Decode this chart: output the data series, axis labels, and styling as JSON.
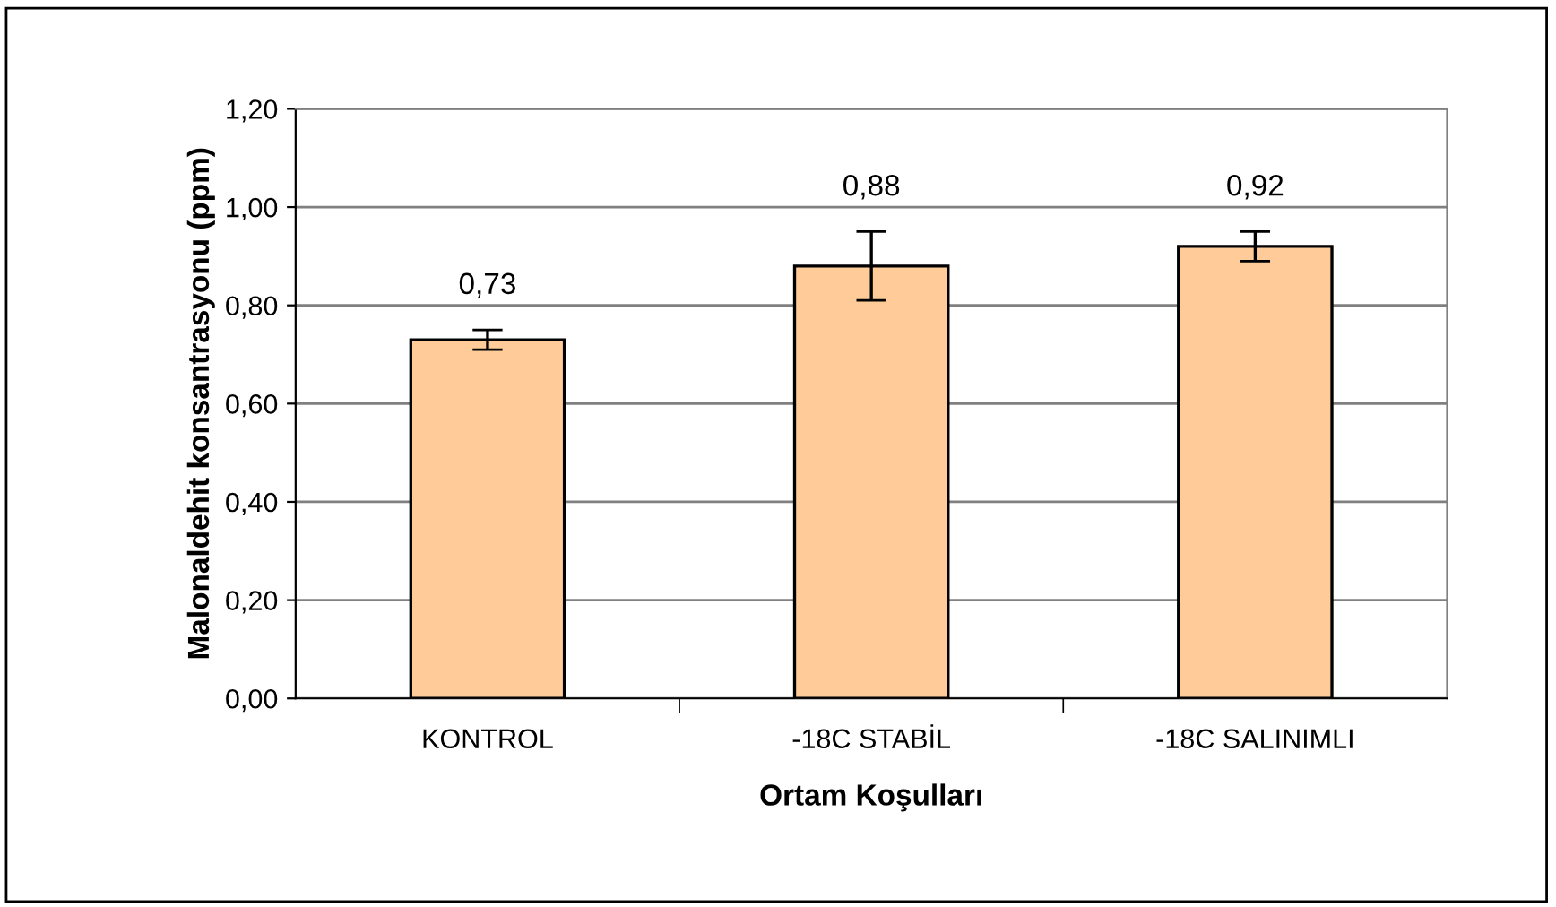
{
  "chart_data": {
    "type": "bar",
    "xlabel": "Ortam Koşulları",
    "ylabel": "Malonaldehit konsantrasyonu (ppm)",
    "categories": [
      "KONTROL",
      "-18C STABİL",
      "-18C SALINIMLI"
    ],
    "values": [
      0.73,
      0.88,
      0.92
    ],
    "errors": [
      0.02,
      0.07,
      0.03
    ],
    "color": "#ffcc99",
    "value_labels": [
      "0,73",
      "0,88",
      "0,92"
    ],
    "ylim": [
      0,
      1.2
    ],
    "yticks": [
      {
        "value": 0,
        "label": "0,00"
      },
      {
        "value": 0.2,
        "label": "0,20"
      },
      {
        "value": 0.4,
        "label": "0,40"
      },
      {
        "value": 0.6,
        "label": "0,60"
      },
      {
        "value": 0.8,
        "label": "0,80"
      },
      {
        "value": 1.0,
        "label": "1,00"
      },
      {
        "value": 1.2,
        "label": "1,20"
      }
    ],
    "grid": "y",
    "legend": false
  }
}
